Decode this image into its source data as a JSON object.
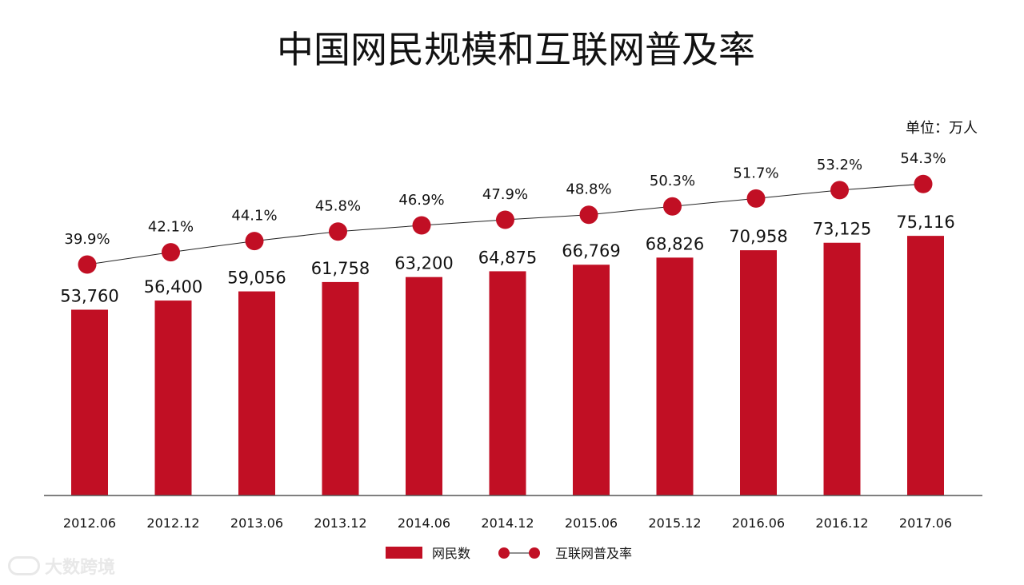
{
  "colors": {
    "bar": "#c10f24",
    "line": "#222222",
    "text": "#111111"
  },
  "chart_data": {
    "type": "bar",
    "title": "中国网民规模和互联网普及率",
    "unit": "单位：万人",
    "categories": [
      "2012.06",
      "2012.12",
      "2013.06",
      "2013.12",
      "2014.06",
      "2014.12",
      "2015.06",
      "2015.12",
      "2016.06",
      "2016.12",
      "2017.06"
    ],
    "series": [
      {
        "name": "网民数",
        "type": "bar",
        "values": [
          53760,
          56400,
          59056,
          61758,
          63200,
          64875,
          66769,
          68826,
          70958,
          73125,
          75116
        ],
        "labels": [
          "53,760",
          "56,400",
          "59,056",
          "61,758",
          "63,200",
          "64,875",
          "66,769",
          "68,826",
          "70,958",
          "73,125",
          "75,116"
        ]
      },
      {
        "name": "互联网普及率",
        "type": "line",
        "values": [
          39.9,
          42.1,
          44.1,
          45.8,
          46.9,
          47.9,
          48.8,
          50.3,
          51.7,
          53.2,
          54.3
        ],
        "labels": [
          "39.9%",
          "42.1%",
          "44.1%",
          "45.8%",
          "46.9%",
          "47.9%",
          "48.8%",
          "50.3%",
          "51.7%",
          "53.2%",
          "54.3%"
        ]
      }
    ],
    "legend_position": "bottom-center",
    "grid": false
  },
  "watermark": {
    "text": "大数跨境"
  }
}
